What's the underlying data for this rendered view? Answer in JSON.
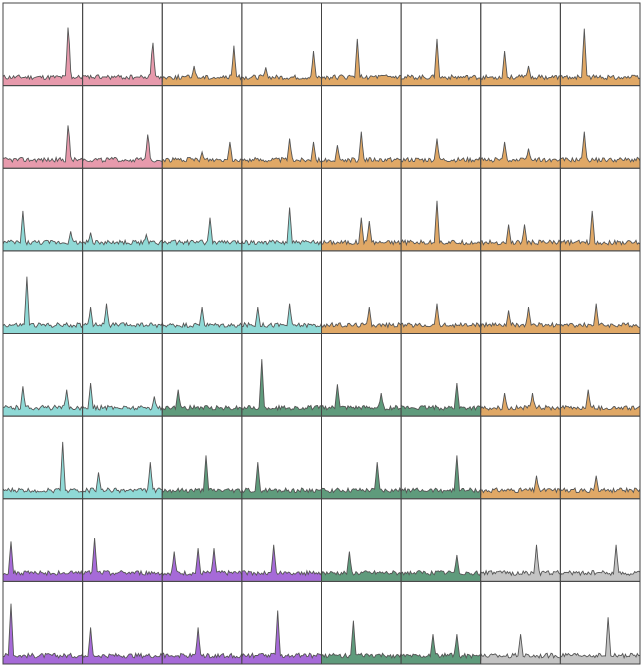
{
  "chart_data": {
    "type": "area",
    "title": "",
    "xlabel": "",
    "ylabel": "",
    "grid": {
      "rows": 8,
      "cols": 8
    },
    "ylim": [
      0,
      1
    ],
    "colors": {
      "pink": "#e79aac",
      "orange": "#e0a866",
      "teal": "#8fd9d6",
      "green": "#5f9b7c",
      "purple": "#a66ad8",
      "gray": "#c4c4c4",
      "outline": "#555555",
      "border": "#444444"
    },
    "cell_colors": [
      [
        "pink",
        "pink",
        "orange",
        "orange",
        "orange",
        "orange",
        "orange",
        "orange"
      ],
      [
        "pink",
        "pink",
        "orange",
        "orange",
        "orange",
        "orange",
        "orange",
        "orange"
      ],
      [
        "teal",
        "teal",
        "teal",
        "teal",
        "orange",
        "orange",
        "orange",
        "orange"
      ],
      [
        "teal",
        "teal",
        "teal",
        "teal",
        "orange",
        "orange",
        "orange",
        "orange"
      ],
      [
        "teal",
        "teal",
        "green",
        "green",
        "green",
        "green",
        "orange",
        "orange"
      ],
      [
        "teal",
        "teal",
        "green",
        "green",
        "green",
        "green",
        "orange",
        "orange"
      ],
      [
        "purple",
        "purple",
        "purple",
        "purple",
        "green",
        "green",
        "gray",
        "gray"
      ],
      [
        "purple",
        "purple",
        "purple",
        "purple",
        "green",
        "green",
        "gray",
        "gray"
      ]
    ],
    "peaks": [
      [
        [
          [
            0.82,
            0.85
          ]
        ],
        [
          [
            0.88,
            0.6
          ]
        ],
        [
          [
            0.9,
            0.5
          ],
          [
            0.4,
            0.2
          ]
        ],
        [
          [
            0.3,
            0.18
          ],
          [
            0.9,
            0.42
          ]
        ],
        [
          [
            0.45,
            0.6
          ]
        ],
        [
          [
            0.45,
            0.6
          ]
        ],
        [
          [
            0.3,
            0.42
          ],
          [
            0.6,
            0.2
          ]
        ],
        [
          [
            0.3,
            0.75
          ]
        ]
      ],
      [
        [
          [
            0.82,
            0.6
          ]
        ],
        [
          [
            0.82,
            0.45
          ]
        ],
        [
          [
            0.85,
            0.3
          ],
          [
            0.5,
            0.15
          ]
        ],
        [
          [
            0.6,
            0.35
          ],
          [
            0.9,
            0.3
          ]
        ],
        [
          [
            0.2,
            0.25
          ],
          [
            0.5,
            0.45
          ]
        ],
        [
          [
            0.45,
            0.35
          ]
        ],
        [
          [
            0.3,
            0.3
          ],
          [
            0.6,
            0.2
          ]
        ],
        [
          [
            0.3,
            0.45
          ]
        ]
      ],
      [
        [
          [
            0.25,
            0.5
          ],
          [
            0.85,
            0.2
          ]
        ],
        [
          [
            0.1,
            0.18
          ],
          [
            0.8,
            0.15
          ]
        ],
        [
          [
            0.6,
            0.4
          ]
        ],
        [
          [
            0.6,
            0.55
          ]
        ],
        [
          [
            0.5,
            0.4
          ],
          [
            0.6,
            0.35
          ]
        ],
        [
          [
            0.45,
            0.65
          ]
        ],
        [
          [
            0.35,
            0.3
          ],
          [
            0.55,
            0.3
          ]
        ],
        [
          [
            0.4,
            0.5
          ]
        ]
      ],
      [
        [
          [
            0.3,
            0.75
          ]
        ],
        [
          [
            0.1,
            0.3
          ],
          [
            0.3,
            0.35
          ]
        ],
        [
          [
            0.5,
            0.3
          ]
        ],
        [
          [
            0.2,
            0.3
          ],
          [
            0.6,
            0.35
          ]
        ],
        [
          [
            0.6,
            0.3
          ]
        ],
        [
          [
            0.45,
            0.35
          ]
        ],
        [
          [
            0.35,
            0.25
          ],
          [
            0.6,
            0.3
          ]
        ],
        [
          [
            0.45,
            0.35
          ]
        ]
      ],
      [
        [
          [
            0.25,
            0.35
          ],
          [
            0.8,
            0.3
          ]
        ],
        [
          [
            0.1,
            0.4
          ],
          [
            0.9,
            0.2
          ]
        ],
        [
          [
            0.2,
            0.3
          ]
        ],
        [
          [
            0.25,
            0.75
          ]
        ],
        [
          [
            0.2,
            0.38
          ],
          [
            0.75,
            0.25
          ]
        ],
        [
          [
            0.7,
            0.4
          ]
        ],
        [
          [
            0.3,
            0.25
          ],
          [
            0.65,
            0.25
          ]
        ],
        [
          [
            0.35,
            0.3
          ]
        ]
      ],
      [
        [
          [
            0.75,
            0.75
          ]
        ],
        [
          [
            0.2,
            0.3
          ],
          [
            0.85,
            0.45
          ]
        ],
        [
          [
            0.55,
            0.55
          ]
        ],
        [
          [
            0.2,
            0.45
          ]
        ],
        [
          [
            0.7,
            0.45
          ]
        ],
        [
          [
            0.7,
            0.55
          ]
        ],
        [
          [
            0.7,
            0.25
          ]
        ],
        [
          [
            0.45,
            0.25
          ]
        ]
      ],
      [
        [
          [
            0.1,
            0.5
          ]
        ],
        [
          [
            0.15,
            0.55
          ]
        ],
        [
          [
            0.15,
            0.35
          ],
          [
            0.45,
            0.4
          ],
          [
            0.65,
            0.4
          ]
        ],
        [
          [
            0.4,
            0.45
          ]
        ],
        [
          [
            0.35,
            0.35
          ]
        ],
        [
          [
            0.7,
            0.3
          ]
        ],
        [
          [
            0.7,
            0.45
          ]
        ],
        [
          [
            0.7,
            0.45
          ]
        ]
      ],
      [
        [
          [
            0.1,
            0.8
          ]
        ],
        [
          [
            0.1,
            0.45
          ]
        ],
        [
          [
            0.45,
            0.45
          ]
        ],
        [
          [
            0.45,
            0.7
          ]
        ],
        [
          [
            0.4,
            0.55
          ]
        ],
        [
          [
            0.4,
            0.35
          ],
          [
            0.7,
            0.35
          ]
        ],
        [
          [
            0.5,
            0.35
          ]
        ],
        [
          [
            0.6,
            0.6
          ]
        ]
      ]
    ]
  }
}
